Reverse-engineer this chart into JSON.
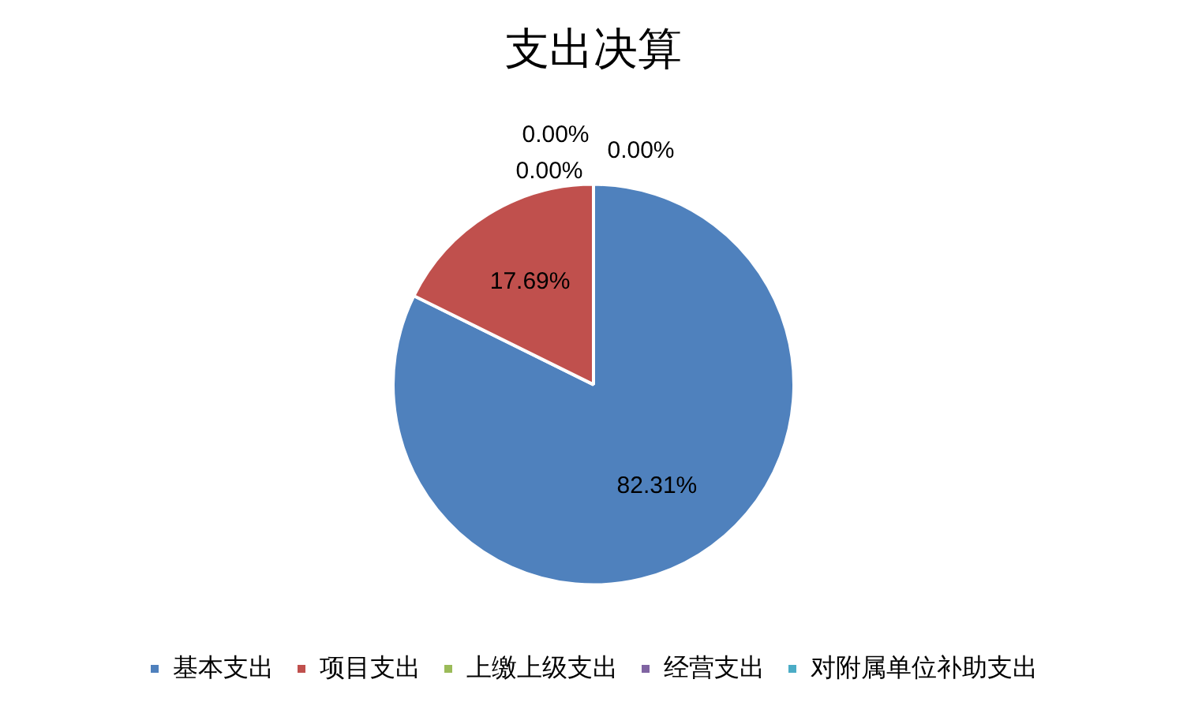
{
  "chart_data": {
    "type": "pie",
    "title": "支出决算",
    "categories": [
      "基本支出",
      "项目支出",
      "上缴上级支出",
      "经营支出",
      "对附属单位补助支出"
    ],
    "values": [
      82.31,
      17.69,
      0,
      0,
      0
    ],
    "colors": [
      "#4f81bd",
      "#c0504d",
      "#9bbb59",
      "#8064a2",
      "#4bacc6"
    ],
    "value_labels": [
      "82.31%",
      "17.69%",
      "0.00%",
      "0.00%",
      "0.00%"
    ],
    "legend": "bottom"
  }
}
